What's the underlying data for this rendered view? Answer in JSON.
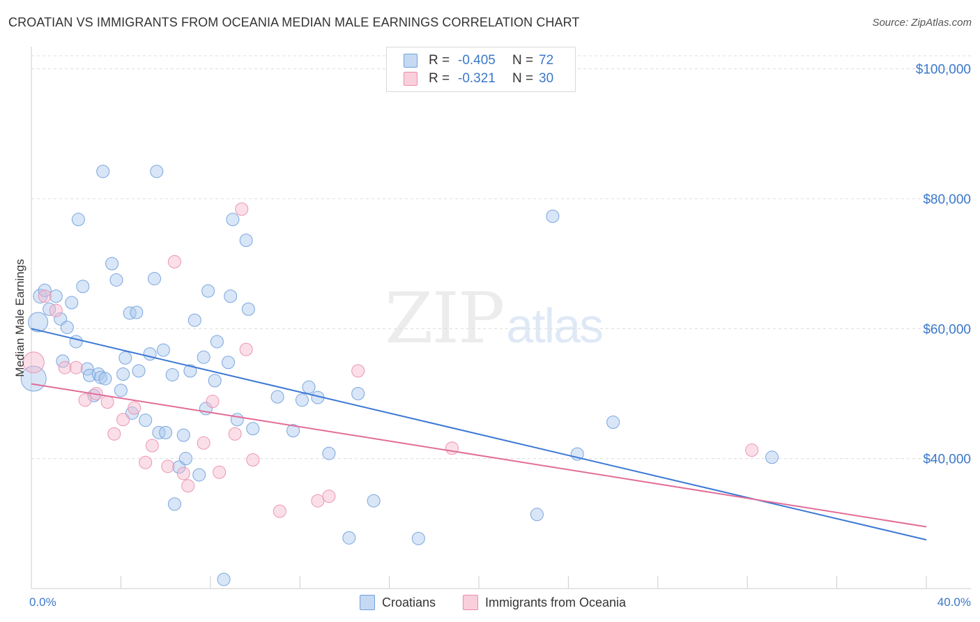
{
  "title": "CROATIAN VS IMMIGRANTS FROM OCEANIA MEDIAN MALE EARNINGS CORRELATION CHART",
  "source": "Source: ZipAtlas.com",
  "watermark": {
    "zip": "ZIP",
    "atlas": "atlas"
  },
  "legend": {
    "rows": [
      {
        "r_label": "R =",
        "r_value": "-0.405",
        "n_label": "N =",
        "n_value": "72",
        "color": "#6fa0dd",
        "fill": "#c5d9f3"
      },
      {
        "r_label": "R =",
        "r_value": "-0.321",
        "n_label": "N =",
        "n_value": "30",
        "color": "#e98cab",
        "fill": "#f9cfdc"
      }
    ]
  },
  "bottom_legend": [
    {
      "label": "Croatians",
      "color": "#6fa0dd",
      "fill": "#c5d9f3"
    },
    {
      "label": "Immigrants from Oceania",
      "color": "#e98cab",
      "fill": "#f9cfdc"
    }
  ],
  "chart_data": {
    "type": "scatter",
    "title": "CROATIAN VS IMMIGRANTS FROM OCEANIA MEDIAN MALE EARNINGS CORRELATION CHART",
    "xlabel": "",
    "ylabel": "Median Male Earnings",
    "xlim": [
      0,
      40
    ],
    "ylim": [
      20000,
      102000
    ],
    "x_tick_labels": [
      {
        "value": 0,
        "label": "0.0%"
      },
      {
        "value": 40,
        "label": "40.0%"
      }
    ],
    "y_tick_labels": [
      {
        "value": 40000,
        "label": "$40,000"
      },
      {
        "value": 60000,
        "label": "$60,000"
      },
      {
        "value": 80000,
        "label": "$80,000"
      },
      {
        "value": 100000,
        "label": "$100,000"
      }
    ],
    "colors": {
      "croatians": "#3b78d4",
      "oceania": "#e26d97"
    },
    "series": [
      {
        "name": "Croatians",
        "trend": {
          "x0": 0,
          "y0": 60000,
          "x1": 40,
          "y1": 27500
        },
        "points": [
          [
            0.1,
            52300,
            18
          ],
          [
            0.3,
            61000,
            14
          ],
          [
            0.4,
            65000,
            10
          ],
          [
            0.6,
            65900,
            9
          ],
          [
            0.8,
            63000,
            9
          ],
          [
            1.1,
            65000,
            9
          ],
          [
            1.3,
            61500,
            9
          ],
          [
            1.6,
            60200,
            9
          ],
          [
            1.8,
            64000,
            9
          ],
          [
            2.0,
            58000,
            9
          ],
          [
            1.4,
            55000,
            9
          ],
          [
            2.1,
            76800,
            9
          ],
          [
            2.3,
            66500,
            9
          ],
          [
            2.5,
            53800,
            9
          ],
          [
            2.6,
            52800,
            9
          ],
          [
            2.8,
            49700,
            9
          ],
          [
            3.0,
            53000,
            9
          ],
          [
            3.1,
            52500,
            9
          ],
          [
            3.3,
            52300,
            9
          ],
          [
            3.2,
            84200,
            9
          ],
          [
            3.6,
            70000,
            9
          ],
          [
            3.8,
            67500,
            9
          ],
          [
            4.0,
            50500,
            9
          ],
          [
            4.1,
            53000,
            9
          ],
          [
            4.2,
            55500,
            9
          ],
          [
            4.4,
            62400,
            9
          ],
          [
            4.7,
            62500,
            9
          ],
          [
            4.8,
            53500,
            9
          ],
          [
            4.5,
            47000,
            9
          ],
          [
            5.1,
            45900,
            9
          ],
          [
            5.3,
            56100,
            9
          ],
          [
            5.5,
            67700,
            9
          ],
          [
            5.6,
            84200,
            9
          ],
          [
            5.7,
            44000,
            9
          ],
          [
            5.9,
            56700,
            9
          ],
          [
            6.0,
            44000,
            9
          ],
          [
            6.3,
            52900,
            9
          ],
          [
            6.4,
            33000,
            9
          ],
          [
            6.6,
            38700,
            9
          ],
          [
            6.8,
            43600,
            9
          ],
          [
            6.9,
            40000,
            9
          ],
          [
            7.1,
            53500,
            9
          ],
          [
            7.3,
            61300,
            9
          ],
          [
            7.5,
            37500,
            9
          ],
          [
            7.7,
            55600,
            9
          ],
          [
            7.8,
            47700,
            9
          ],
          [
            7.9,
            65800,
            9
          ],
          [
            8.2,
            52000,
            9
          ],
          [
            8.3,
            58000,
            9
          ],
          [
            8.6,
            21400,
            9
          ],
          [
            8.8,
            54800,
            9
          ],
          [
            8.9,
            65000,
            9
          ],
          [
            9.0,
            76800,
            9
          ],
          [
            9.2,
            46000,
            9
          ],
          [
            9.6,
            73600,
            9
          ],
          [
            9.7,
            63000,
            9
          ],
          [
            9.9,
            44600,
            9
          ],
          [
            11.7,
            44300,
            9
          ],
          [
            12.1,
            49000,
            9
          ],
          [
            12.4,
            51000,
            9
          ],
          [
            12.8,
            49400,
            9
          ],
          [
            13.3,
            40800,
            9
          ],
          [
            14.2,
            27800,
            9
          ],
          [
            14.6,
            50000,
            9
          ],
          [
            15.3,
            33500,
            9
          ],
          [
            17.3,
            27700,
            9
          ],
          [
            22.6,
            31400,
            9
          ],
          [
            23.3,
            77300,
            9
          ],
          [
            24.4,
            40700,
            9
          ],
          [
            26.0,
            45600,
            9
          ],
          [
            33.1,
            40200,
            9
          ],
          [
            11.0,
            49500,
            9
          ]
        ]
      },
      {
        "name": "Immigrants from Oceania",
        "trend": {
          "x0": 0,
          "y0": 51500,
          "x1": 40,
          "y1": 29500
        },
        "points": [
          [
            0.1,
            54800,
            15
          ],
          [
            0.6,
            65000,
            9
          ],
          [
            1.1,
            62800,
            9
          ],
          [
            1.5,
            54000,
            9
          ],
          [
            2.0,
            54000,
            9
          ],
          [
            2.4,
            49000,
            9
          ],
          [
            2.9,
            50000,
            9
          ],
          [
            3.4,
            48700,
            9
          ],
          [
            3.7,
            43800,
            9
          ],
          [
            4.1,
            46000,
            9
          ],
          [
            4.6,
            47800,
            9
          ],
          [
            5.1,
            39400,
            9
          ],
          [
            5.4,
            42000,
            9
          ],
          [
            6.1,
            38800,
            9
          ],
          [
            6.4,
            70300,
            9
          ],
          [
            6.8,
            37700,
            9
          ],
          [
            7.0,
            35800,
            9
          ],
          [
            7.7,
            42400,
            9
          ],
          [
            8.1,
            48800,
            9
          ],
          [
            8.4,
            37900,
            9
          ],
          [
            9.1,
            43800,
            9
          ],
          [
            9.4,
            78400,
            9
          ],
          [
            9.6,
            56800,
            9
          ],
          [
            9.9,
            39800,
            9
          ],
          [
            11.1,
            31900,
            9
          ],
          [
            12.8,
            33500,
            9
          ],
          [
            13.3,
            34200,
            9
          ],
          [
            14.6,
            53500,
            9
          ],
          [
            18.8,
            41600,
            9
          ],
          [
            32.2,
            41300,
            9
          ]
        ]
      }
    ]
  }
}
